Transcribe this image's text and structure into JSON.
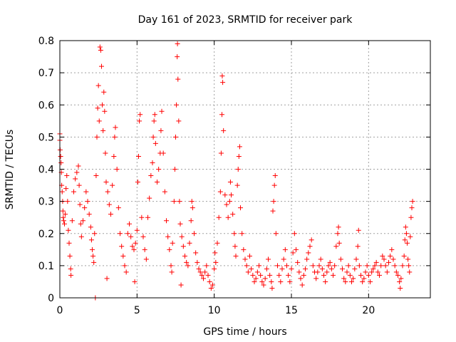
{
  "chart_data": {
    "type": "scatter",
    "title": "Day 161 of 2023, SRMTID for receiver park",
    "xlabel": "GPS time / hours",
    "ylabel": "SRMTID / TECUs",
    "xlim": [
      0,
      24
    ],
    "ylim": [
      0,
      0.8
    ],
    "xticks": [
      0,
      5,
      10,
      15,
      20
    ],
    "yticks": [
      0,
      0.1,
      0.2,
      0.3,
      0.4,
      0.5,
      0.6,
      0.7,
      0.8
    ],
    "ytick_labels": [
      "0",
      "0.1",
      "0.2",
      "0.3",
      "0.4",
      "0.5",
      "0.6",
      "0.7",
      "0.8"
    ],
    "grid": true,
    "marker": "plus",
    "color": "#ff0000",
    "series": [
      {
        "name": "SRMTID",
        "points": [
          [
            0.0,
            0.51
          ],
          [
            0.0,
            0.49
          ],
          [
            0.02,
            0.46
          ],
          [
            0.05,
            0.44
          ],
          [
            0.08,
            0.42
          ],
          [
            0.1,
            0.39
          ],
          [
            0.12,
            0.35
          ],
          [
            0.15,
            0.33
          ],
          [
            0.18,
            0.3
          ],
          [
            0.2,
            0.27
          ],
          [
            0.22,
            0.25
          ],
          [
            0.25,
            0.24
          ],
          [
            0.3,
            0.23
          ],
          [
            0.35,
            0.26
          ],
          [
            0.4,
            0.34
          ],
          [
            0.45,
            0.38
          ],
          [
            0.5,
            0.3
          ],
          [
            0.55,
            0.21
          ],
          [
            0.6,
            0.17
          ],
          [
            0.65,
            0.13
          ],
          [
            0.7,
            0.09
          ],
          [
            0.72,
            0.07
          ],
          [
            0.8,
            0.24
          ],
          [
            0.9,
            0.33
          ],
          [
            1.0,
            0.37
          ],
          [
            1.1,
            0.39
          ],
          [
            1.2,
            0.41
          ],
          [
            1.25,
            0.35
          ],
          [
            1.3,
            0.29
          ],
          [
            1.35,
            0.23
          ],
          [
            1.4,
            0.19
          ],
          [
            1.5,
            0.24
          ],
          [
            1.6,
            0.28
          ],
          [
            1.7,
            0.33
          ],
          [
            1.8,
            0.3
          ],
          [
            1.9,
            0.26
          ],
          [
            2.0,
            0.22
          ],
          [
            2.05,
            0.18
          ],
          [
            2.1,
            0.15
          ],
          [
            2.15,
            0.13
          ],
          [
            2.2,
            0.11
          ],
          [
            2.25,
            0.2
          ],
          [
            2.3,
            0.0
          ],
          [
            2.35,
            0.38
          ],
          [
            2.4,
            0.5
          ],
          [
            2.45,
            0.59
          ],
          [
            2.5,
            0.66
          ],
          [
            2.55,
            0.55
          ],
          [
            2.6,
            0.78
          ],
          [
            2.65,
            0.77
          ],
          [
            2.7,
            0.72
          ],
          [
            2.75,
            0.6
          ],
          [
            2.8,
            0.52
          ],
          [
            2.85,
            0.64
          ],
          [
            2.9,
            0.58
          ],
          [
            2.95,
            0.45
          ],
          [
            3.0,
            0.36
          ],
          [
            3.05,
            0.06
          ],
          [
            3.1,
            0.33
          ],
          [
            3.2,
            0.29
          ],
          [
            3.3,
            0.26
          ],
          [
            3.4,
            0.35
          ],
          [
            3.5,
            0.44
          ],
          [
            3.55,
            0.5
          ],
          [
            3.6,
            0.53
          ],
          [
            3.7,
            0.4
          ],
          [
            3.8,
            0.28
          ],
          [
            3.9,
            0.2
          ],
          [
            4.0,
            0.16
          ],
          [
            4.1,
            0.13
          ],
          [
            4.2,
            0.1
          ],
          [
            4.3,
            0.08
          ],
          [
            4.4,
            0.2
          ],
          [
            4.5,
            0.23
          ],
          [
            4.6,
            0.19
          ],
          [
            4.7,
            0.16
          ],
          [
            4.8,
            0.15
          ],
          [
            4.85,
            0.05
          ],
          [
            4.9,
            0.17
          ],
          [
            5.0,
            0.21
          ],
          [
            5.05,
            0.36
          ],
          [
            5.1,
            0.44
          ],
          [
            5.15,
            0.55
          ],
          [
            5.2,
            0.57
          ],
          [
            5.3,
            0.25
          ],
          [
            5.4,
            0.19
          ],
          [
            5.5,
            0.15
          ],
          [
            5.6,
            0.12
          ],
          [
            5.7,
            0.25
          ],
          [
            5.8,
            0.31
          ],
          [
            5.9,
            0.38
          ],
          [
            6.0,
            0.42
          ],
          [
            6.05,
            0.5
          ],
          [
            6.1,
            0.55
          ],
          [
            6.15,
            0.57
          ],
          [
            6.2,
            0.48
          ],
          [
            6.3,
            0.36
          ],
          [
            6.4,
            0.4
          ],
          [
            6.5,
            0.45
          ],
          [
            6.55,
            0.52
          ],
          [
            6.6,
            0.58
          ],
          [
            6.7,
            0.45
          ],
          [
            6.8,
            0.33
          ],
          [
            6.9,
            0.24
          ],
          [
            7.0,
            0.19
          ],
          [
            7.1,
            0.15
          ],
          [
            7.2,
            0.1
          ],
          [
            7.25,
            0.08
          ],
          [
            7.3,
            0.17
          ],
          [
            7.4,
            0.3
          ],
          [
            7.45,
            0.4
          ],
          [
            7.5,
            0.5
          ],
          [
            7.55,
            0.6
          ],
          [
            7.6,
            0.75
          ],
          [
            7.62,
            0.79
          ],
          [
            7.65,
            0.68
          ],
          [
            7.7,
            0.55
          ],
          [
            7.75,
            0.3
          ],
          [
            7.8,
            0.23
          ],
          [
            7.85,
            0.04
          ],
          [
            7.9,
            0.19
          ],
          [
            8.0,
            0.16
          ],
          [
            8.1,
            0.13
          ],
          [
            8.2,
            0.11
          ],
          [
            8.3,
            0.1
          ],
          [
            8.4,
            0.17
          ],
          [
            8.5,
            0.24
          ],
          [
            8.55,
            0.3
          ],
          [
            8.6,
            0.28
          ],
          [
            8.7,
            0.2
          ],
          [
            8.8,
            0.14
          ],
          [
            8.9,
            0.11
          ],
          [
            9.0,
            0.09
          ],
          [
            9.1,
            0.08
          ],
          [
            9.2,
            0.07
          ],
          [
            9.3,
            0.06
          ],
          [
            9.4,
            0.08
          ],
          [
            9.5,
            0.1
          ],
          [
            9.6,
            0.07
          ],
          [
            9.7,
            0.05
          ],
          [
            9.8,
            0.03
          ],
          [
            9.9,
            0.04
          ],
          [
            10.0,
            0.09
          ],
          [
            10.05,
            0.14
          ],
          [
            10.1,
            0.11
          ],
          [
            10.2,
            0.17
          ],
          [
            10.3,
            0.25
          ],
          [
            10.4,
            0.33
          ],
          [
            10.45,
            0.45
          ],
          [
            10.5,
            0.57
          ],
          [
            10.52,
            0.69
          ],
          [
            10.55,
            0.67
          ],
          [
            10.6,
            0.52
          ],
          [
            10.7,
            0.32
          ],
          [
            10.8,
            0.29
          ],
          [
            10.9,
            0.25
          ],
          [
            11.0,
            0.3
          ],
          [
            11.05,
            0.36
          ],
          [
            11.1,
            0.32
          ],
          [
            11.2,
            0.26
          ],
          [
            11.3,
            0.2
          ],
          [
            11.35,
            0.16
          ],
          [
            11.4,
            0.13
          ],
          [
            11.5,
            0.35
          ],
          [
            11.55,
            0.4
          ],
          [
            11.6,
            0.44
          ],
          [
            11.65,
            0.47
          ],
          [
            11.7,
            0.28
          ],
          [
            11.8,
            0.2
          ],
          [
            11.9,
            0.15
          ],
          [
            12.0,
            0.12
          ],
          [
            12.1,
            0.1
          ],
          [
            12.2,
            0.08
          ],
          [
            12.3,
            0.13
          ],
          [
            12.4,
            0.09
          ],
          [
            12.5,
            0.07
          ],
          [
            12.6,
            0.05
          ],
          [
            12.7,
            0.06
          ],
          [
            12.8,
            0.08
          ],
          [
            12.9,
            0.1
          ],
          [
            13.0,
            0.07
          ],
          [
            13.1,
            0.05
          ],
          [
            13.2,
            0.04
          ],
          [
            13.3,
            0.06
          ],
          [
            13.4,
            0.09
          ],
          [
            13.5,
            0.12
          ],
          [
            13.6,
            0.07
          ],
          [
            13.7,
            0.05
          ],
          [
            13.75,
            0.03
          ],
          [
            13.8,
            0.27
          ],
          [
            13.85,
            0.3
          ],
          [
            13.9,
            0.35
          ],
          [
            13.95,
            0.38
          ],
          [
            14.0,
            0.2
          ],
          [
            14.1,
            0.1
          ],
          [
            14.2,
            0.07
          ],
          [
            14.3,
            0.05
          ],
          [
            14.4,
            0.09
          ],
          [
            14.5,
            0.12
          ],
          [
            14.6,
            0.15
          ],
          [
            14.7,
            0.1
          ],
          [
            14.8,
            0.07
          ],
          [
            14.9,
            0.05
          ],
          [
            15.0,
            0.09
          ],
          [
            15.1,
            0.14
          ],
          [
            15.2,
            0.2
          ],
          [
            15.3,
            0.15
          ],
          [
            15.4,
            0.11
          ],
          [
            15.5,
            0.08
          ],
          [
            15.6,
            0.06
          ],
          [
            15.7,
            0.04
          ],
          [
            15.8,
            0.07
          ],
          [
            15.9,
            0.09
          ],
          [
            16.0,
            0.12
          ],
          [
            16.1,
            0.14
          ],
          [
            16.2,
            0.16
          ],
          [
            16.3,
            0.18
          ],
          [
            16.4,
            0.1
          ],
          [
            16.5,
            0.08
          ],
          [
            16.6,
            0.06
          ],
          [
            16.7,
            0.08
          ],
          [
            16.8,
            0.1
          ],
          [
            16.9,
            0.12
          ],
          [
            17.0,
            0.09
          ],
          [
            17.1,
            0.07
          ],
          [
            17.2,
            0.05
          ],
          [
            17.3,
            0.08
          ],
          [
            17.4,
            0.1
          ],
          [
            17.5,
            0.11
          ],
          [
            17.6,
            0.09
          ],
          [
            17.7,
            0.07
          ],
          [
            17.8,
            0.1
          ],
          [
            17.9,
            0.16
          ],
          [
            18.0,
            0.2
          ],
          [
            18.05,
            0.22
          ],
          [
            18.1,
            0.17
          ],
          [
            18.2,
            0.12
          ],
          [
            18.3,
            0.09
          ],
          [
            18.4,
            0.06
          ],
          [
            18.5,
            0.05
          ],
          [
            18.6,
            0.08
          ],
          [
            18.7,
            0.1
          ],
          [
            18.8,
            0.07
          ],
          [
            18.9,
            0.05
          ],
          [
            19.0,
            0.06
          ],
          [
            19.1,
            0.09
          ],
          [
            19.2,
            0.12
          ],
          [
            19.3,
            0.16
          ],
          [
            19.35,
            0.21
          ],
          [
            19.4,
            0.1
          ],
          [
            19.5,
            0.07
          ],
          [
            19.6,
            0.05
          ],
          [
            19.7,
            0.06
          ],
          [
            19.8,
            0.08
          ],
          [
            19.9,
            0.1
          ],
          [
            20.0,
            0.07
          ],
          [
            20.1,
            0.05
          ],
          [
            20.2,
            0.08
          ],
          [
            20.3,
            0.09
          ],
          [
            20.4,
            0.1
          ],
          [
            20.5,
            0.11
          ],
          [
            20.6,
            0.08
          ],
          [
            20.7,
            0.07
          ],
          [
            20.8,
            0.1
          ],
          [
            20.9,
            0.13
          ],
          [
            21.0,
            0.12
          ],
          [
            21.1,
            0.1
          ],
          [
            21.2,
            0.08
          ],
          [
            21.3,
            0.11
          ],
          [
            21.4,
            0.13
          ],
          [
            21.5,
            0.15
          ],
          [
            21.6,
            0.12
          ],
          [
            21.7,
            0.1
          ],
          [
            21.8,
            0.08
          ],
          [
            21.9,
            0.07
          ],
          [
            22.0,
            0.05
          ],
          [
            22.05,
            0.03
          ],
          [
            22.1,
            0.06
          ],
          [
            22.2,
            0.1
          ],
          [
            22.3,
            0.13
          ],
          [
            22.35,
            0.18
          ],
          [
            22.4,
            0.22
          ],
          [
            22.45,
            0.2
          ],
          [
            22.5,
            0.17
          ],
          [
            22.55,
            0.12
          ],
          [
            22.6,
            0.1
          ],
          [
            22.65,
            0.08
          ],
          [
            22.7,
            0.19
          ],
          [
            22.75,
            0.25
          ],
          [
            22.8,
            0.28
          ],
          [
            22.85,
            0.3
          ]
        ]
      }
    ]
  }
}
